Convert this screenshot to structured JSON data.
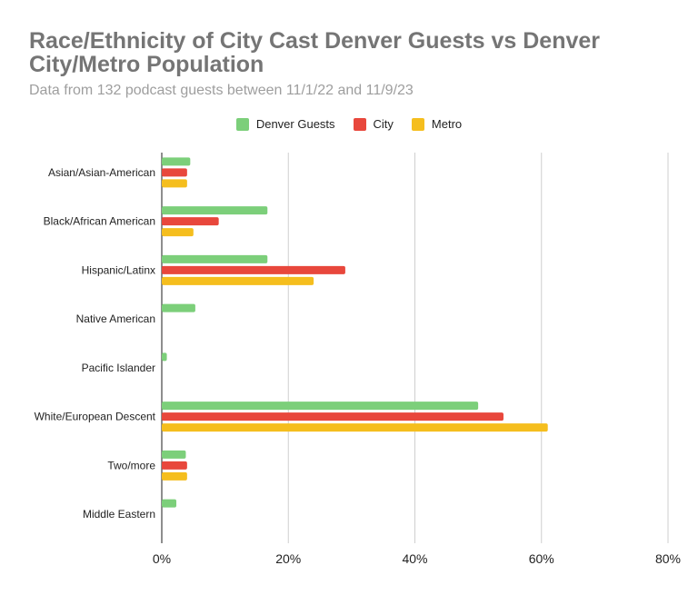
{
  "chart_data": {
    "type": "bar",
    "orientation": "horizontal",
    "title": "Race/Ethnicity of City Cast Denver Guests vs Denver City/Metro Population",
    "subtitle": "Data from 132 podcast guests between 11/1/22 and 11/9/23",
    "categories": [
      "Asian/Asian-American",
      "Black/African American",
      "Hispanic/Latinx",
      "Native American",
      "Pacific Islander",
      "White/European Descent",
      "Two/more",
      "Middle Eastern"
    ],
    "series": [
      {
        "name": "Denver Guests",
        "color": "#7ccf7a",
        "values": [
          4.5,
          16.7,
          16.7,
          5.3,
          0.8,
          50.0,
          3.8,
          2.3
        ]
      },
      {
        "name": "City",
        "color": "#e8473c",
        "values": [
          4.0,
          9.0,
          29.0,
          0,
          0,
          54.0,
          4.0,
          0
        ]
      },
      {
        "name": "Metro",
        "color": "#f5be1e",
        "values": [
          4.0,
          5.0,
          24.0,
          0,
          0,
          61.0,
          4.0,
          0
        ]
      }
    ],
    "xlim": [
      0,
      80
    ],
    "xticks": [
      "0%",
      "20%",
      "40%",
      "60%",
      "80%"
    ],
    "xtick_values": [
      0,
      20,
      40,
      60,
      80
    ],
    "grid": true,
    "legend_position": "top"
  }
}
